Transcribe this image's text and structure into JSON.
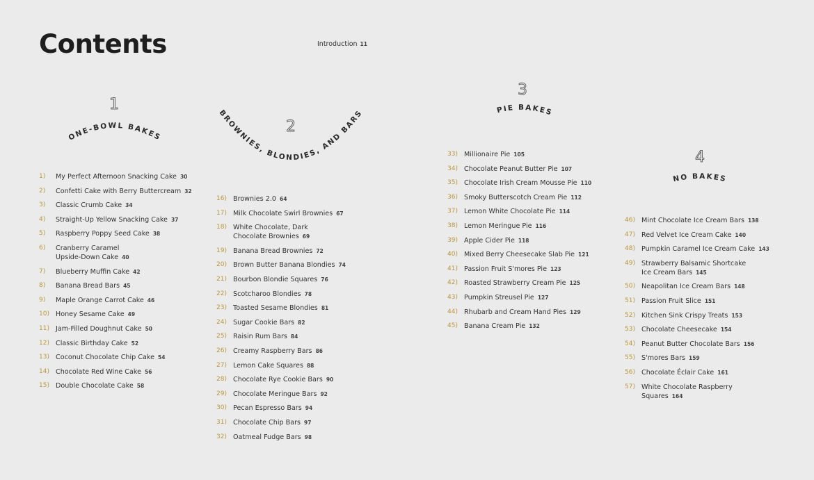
{
  "title": "Contents",
  "introduction": {
    "label": "Introduction",
    "page": "11"
  },
  "sections": [
    {
      "number": "1",
      "title": "ONE-BOWL BAKES",
      "items": [
        {
          "n": "1)",
          "name": "My Perfect Afternoon Snacking Cake",
          "page": "30"
        },
        {
          "n": "2)",
          "name": "Confetti Cake with Berry Buttercream",
          "page": "32"
        },
        {
          "n": "3)",
          "name": "Classic Crumb Cake",
          "page": "34"
        },
        {
          "n": "4)",
          "name": "Straight-Up Yellow Snacking Cake",
          "page": "37"
        },
        {
          "n": "5)",
          "name": "Raspberry Poppy Seed Cake",
          "page": "38"
        },
        {
          "n": "6)",
          "name": "Cranberry Caramel Upside-Down Cake",
          "page": "40"
        },
        {
          "n": "7)",
          "name": "Blueberry Muffin Cake",
          "page": "42"
        },
        {
          "n": "8)",
          "name": "Banana Bread Bars",
          "page": "45"
        },
        {
          "n": "9)",
          "name": "Maple Orange Carrot Cake",
          "page": "46"
        },
        {
          "n": "10)",
          "name": "Honey Sesame Cake",
          "page": "49"
        },
        {
          "n": "11)",
          "name": "Jam-Filled Doughnut Cake",
          "page": "50"
        },
        {
          "n": "12)",
          "name": "Classic Birthday Cake",
          "page": "52"
        },
        {
          "n": "13)",
          "name": "Coconut Chocolate Chip Cake",
          "page": "54"
        },
        {
          "n": "14)",
          "name": "Chocolate Red Wine Cake",
          "page": "56"
        },
        {
          "n": "15)",
          "name": "Double Chocolate Cake",
          "page": "58"
        }
      ]
    },
    {
      "number": "2",
      "title": "BROWNIES, BLONDIES, AND BARS",
      "items": [
        {
          "n": "16)",
          "name": "Brownies 2.0",
          "page": "64"
        },
        {
          "n": "17)",
          "name": "Milk Chocolate Swirl Brownies",
          "page": "67"
        },
        {
          "n": "18)",
          "name": "White Chocolate, Dark Chocolate Brownies",
          "page": "69"
        },
        {
          "n": "19)",
          "name": "Banana Bread Brownies",
          "page": "72"
        },
        {
          "n": "20)",
          "name": "Brown Butter Banana Blondies",
          "page": "74"
        },
        {
          "n": "21)",
          "name": "Bourbon Blondie Squares",
          "page": "76"
        },
        {
          "n": "22)",
          "name": "Scotcharoo Blondies",
          "page": "78"
        },
        {
          "n": "23)",
          "name": "Toasted Sesame Blondies",
          "page": "81"
        },
        {
          "n": "24)",
          "name": "Sugar Cookie Bars",
          "page": "82"
        },
        {
          "n": "25)",
          "name": "Raisin Rum Bars",
          "page": "84"
        },
        {
          "n": "26)",
          "name": "Creamy Raspberry Bars",
          "page": "86"
        },
        {
          "n": "27)",
          "name": "Lemon Cake Squares",
          "page": "88"
        },
        {
          "n": "28)",
          "name": "Chocolate Rye Cookie Bars",
          "page": "90"
        },
        {
          "n": "29)",
          "name": "Chocolate Meringue Bars",
          "page": "92"
        },
        {
          "n": "30)",
          "name": "Pecan Espresso Bars",
          "page": "94"
        },
        {
          "n": "31)",
          "name": "Chocolate Chip Bars",
          "page": "97"
        },
        {
          "n": "32)",
          "name": "Oatmeal Fudge Bars",
          "page": "98"
        }
      ]
    },
    {
      "number": "3",
      "title": "PIE BAKES",
      "items": [
        {
          "n": "33)",
          "name": "Millionaire Pie",
          "page": "105"
        },
        {
          "n": "34)",
          "name": "Chocolate Peanut Butter Pie",
          "page": "107"
        },
        {
          "n": "35)",
          "name": "Chocolate Irish Cream Mousse Pie",
          "page": "110"
        },
        {
          "n": "36)",
          "name": "Smoky Butterscotch Cream Pie",
          "page": "112"
        },
        {
          "n": "37)",
          "name": "Lemon White Chocolate Pie",
          "page": "114"
        },
        {
          "n": "38)",
          "name": "Lemon Meringue Pie",
          "page": "116"
        },
        {
          "n": "39)",
          "name": "Apple Cider Pie",
          "page": "118"
        },
        {
          "n": "40)",
          "name": "Mixed Berry Cheesecake Slab Pie",
          "page": "121"
        },
        {
          "n": "41)",
          "name": "Passion Fruit S'mores Pie",
          "page": "123"
        },
        {
          "n": "42)",
          "name": "Roasted Strawberry Cream Pie",
          "page": "125"
        },
        {
          "n": "43)",
          "name": "Pumpkin Streusel Pie",
          "page": "127"
        },
        {
          "n": "44)",
          "name": "Rhubarb and Cream Hand Pies",
          "page": "129"
        },
        {
          "n": "45)",
          "name": "Banana Cream Pie",
          "page": "132"
        }
      ]
    },
    {
      "number": "4",
      "title": "NO BAKES",
      "items": [
        {
          "n": "46)",
          "name": "Mint Chocolate Ice Cream Bars",
          "page": "138"
        },
        {
          "n": "47)",
          "name": "Red Velvet Ice Cream Cake",
          "page": "140"
        },
        {
          "n": "48)",
          "name": "Pumpkin Caramel Ice Cream Cake",
          "page": "143"
        },
        {
          "n": "49)",
          "name": "Strawberry Balsamic Shortcake Ice Cream Bars",
          "page": "145"
        },
        {
          "n": "50)",
          "name": "Neapolitan Ice Cream Bars",
          "page": "148"
        },
        {
          "n": "51)",
          "name": "Passion Fruit Slice",
          "page": "151"
        },
        {
          "n": "52)",
          "name": "Kitchen Sink Crispy Treats",
          "page": "153"
        },
        {
          "n": "53)",
          "name": "Chocolate Cheesecake",
          "page": "154"
        },
        {
          "n": "54)",
          "name": "Peanut Butter Chocolate Bars",
          "page": "156"
        },
        {
          "n": "55)",
          "name": "S'mores Bars",
          "page": "159"
        },
        {
          "n": "56)",
          "name": "Chocolate Éclair Cake",
          "page": "161"
        },
        {
          "n": "57)",
          "name": "White Chocolate Raspberry Squares",
          "page": "164"
        }
      ]
    }
  ],
  "colors": {
    "background": "#ebebeb",
    "number_accent": "#b8963a",
    "text": "#333333"
  }
}
